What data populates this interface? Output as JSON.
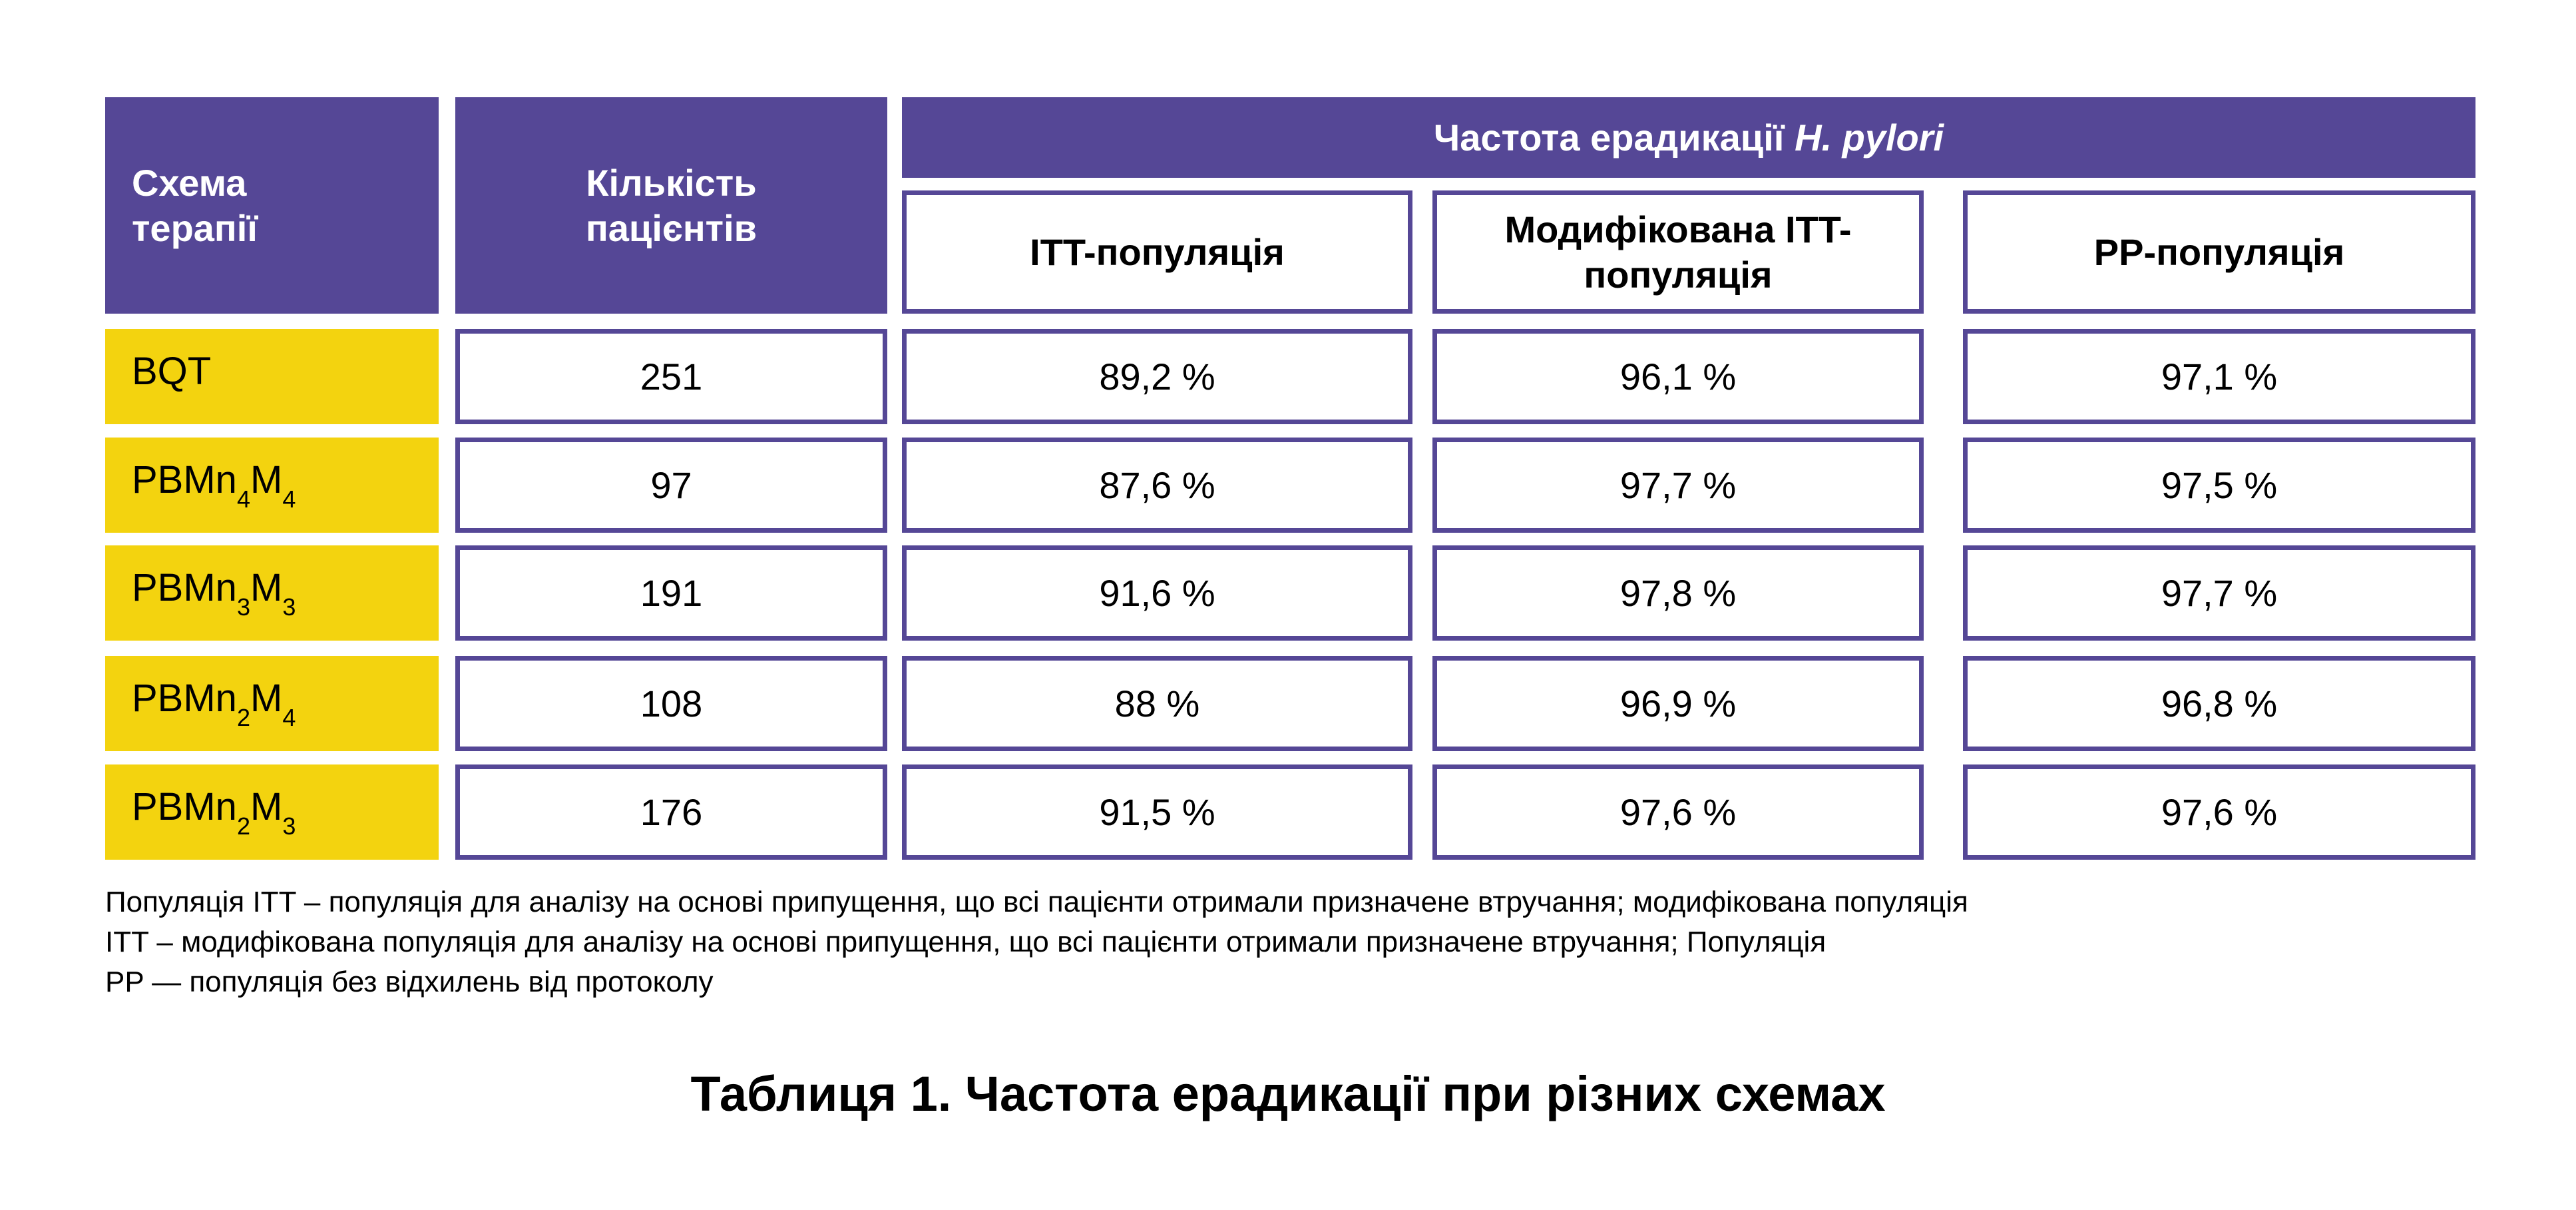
{
  "header": {
    "scheme": "Схема терапії",
    "patients": "Кількість пацієнтів",
    "group_prefix": "Частота ерадикації ",
    "group_italic": "H. pylori",
    "itt": "ITT-популяція",
    "mitt": "Модифікована ITT- популяція",
    "pp": "PP-популяція"
  },
  "colors": {
    "purple": "#554796",
    "yellow": "#F3D30F"
  },
  "rows": [
    {
      "scheme": "BQT",
      "base": "BQT",
      "s1": "",
      "m": "",
      "s2": "",
      "patients": "251",
      "itt": "89,2 %",
      "mitt": "96,1 %",
      "pp": "97,1 %"
    },
    {
      "scheme": "PBMn4M4",
      "base": "PBMn",
      "s1": "4",
      "m": "M",
      "s2": "4",
      "patients": "97",
      "itt": "87,6 %",
      "mitt": "97,7 %",
      "pp": "97,5 %"
    },
    {
      "scheme": "PBMn3M3",
      "base": "PBMn",
      "s1": "3",
      "m": "M",
      "s2": "3",
      "patients": "191",
      "itt": "91,6 %",
      "mitt": "97,8 %",
      "pp": "97,7 %"
    },
    {
      "scheme": "PBMn2M4",
      "base": "PBMn",
      "s1": "2",
      "m": "M",
      "s2": "4",
      "patients": "108",
      "itt": "88 %",
      "mitt": "96,9 %",
      "pp": "96,8 %"
    },
    {
      "scheme": "PBMn2M3",
      "base": "PBMn",
      "s1": "2",
      "m": "M",
      "s2": "3",
      "patients": "176",
      "itt": "91,5 %",
      "mitt": "97,6 %",
      "pp": "97,6 %"
    }
  ],
  "footnote": [
    "Популяція ITT – популяція для аналізу на основі припущення, що всі пацієнти отримали призначене втручання; модифікована популяція",
    "ITT – модифікована популяція для аналізу на основі припущення, що всі пацієнти отримали призначене втручання; Популяція",
    "PP — популяція без відхилень від протоколу"
  ],
  "caption": "Таблиця 1. Частота ерадикації при різних схемах"
}
